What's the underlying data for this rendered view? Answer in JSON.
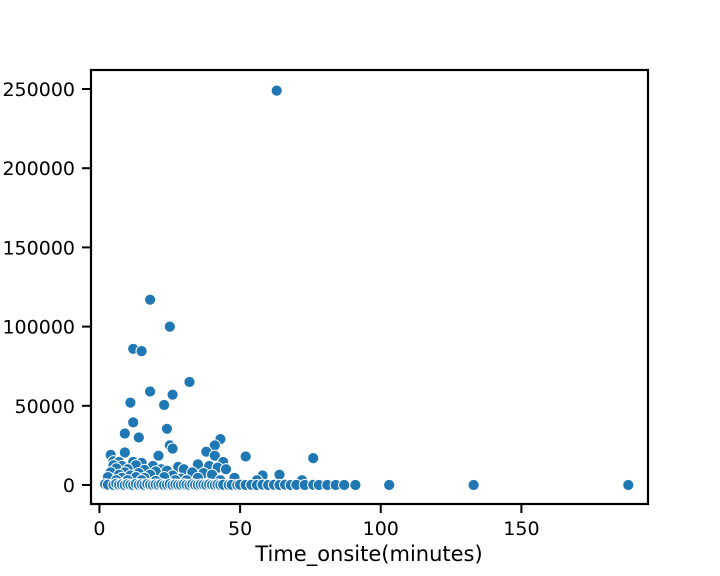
{
  "chart_data": {
    "type": "scatter",
    "title": "",
    "xlabel": "Time_onsite(minutes)",
    "ylabel": "",
    "xlim": [
      -3,
      195
    ],
    "ylim": [
      -12000,
      262000
    ],
    "xticks": [
      0,
      50,
      100,
      150
    ],
    "xtick_labels": [
      "0",
      "50",
      "100",
      "150"
    ],
    "yticks": [
      0,
      50000,
      100000,
      150000,
      200000,
      250000
    ],
    "ytick_labels": [
      "0",
      "50000",
      "100000",
      "150000",
      "200000",
      "250000"
    ],
    "grid": false,
    "legend": "none",
    "marker_color": "#1f77b4",
    "marker_edge_color": "#ffffff",
    "series": [
      {
        "points": [
          [
            63,
            249000
          ],
          [
            18,
            117000
          ],
          [
            25,
            100000
          ],
          [
            12,
            86000
          ],
          [
            15,
            84500
          ],
          [
            32,
            65000
          ],
          [
            18,
            59000
          ],
          [
            26,
            57000
          ],
          [
            11,
            52000
          ],
          [
            23,
            50500
          ],
          [
            12,
            39500
          ],
          [
            24,
            35500
          ],
          [
            9,
            32500
          ],
          [
            14,
            30000
          ],
          [
            43,
            29000
          ],
          [
            41,
            25000
          ],
          [
            25,
            25000
          ],
          [
            26,
            23000
          ],
          [
            38,
            21000
          ],
          [
            9,
            20500
          ],
          [
            4,
            19000
          ],
          [
            21,
            18500
          ],
          [
            41,
            18500
          ],
          [
            52,
            18000
          ],
          [
            76,
            17000
          ],
          [
            5,
            15000
          ],
          [
            7,
            14500
          ],
          [
            12,
            14500
          ],
          [
            15,
            14000
          ],
          [
            44,
            14500
          ],
          [
            35,
            13000
          ],
          [
            5,
            12500
          ],
          [
            8,
            12000
          ],
          [
            13,
            12500
          ],
          [
            19,
            12000
          ],
          [
            28,
            11500
          ],
          [
            39,
            12000
          ],
          [
            42,
            11000
          ],
          [
            6,
            10500
          ],
          [
            10,
            10000
          ],
          [
            16,
            9500
          ],
          [
            22,
            10000
          ],
          [
            24,
            9000
          ],
          [
            30,
            10000
          ],
          [
            45,
            10000
          ],
          [
            4,
            8000
          ],
          [
            9,
            8000
          ],
          [
            14,
            7500
          ],
          [
            20,
            8500
          ],
          [
            33,
            8000
          ],
          [
            37,
            7500
          ],
          [
            7,
            6500
          ],
          [
            11,
            6000
          ],
          [
            18,
            6500
          ],
          [
            26,
            6000
          ],
          [
            40,
            6500
          ],
          [
            58,
            6000
          ],
          [
            64,
            6500
          ],
          [
            3,
            5000
          ],
          [
            8,
            4500
          ],
          [
            13,
            5000
          ],
          [
            16,
            4500
          ],
          [
            23,
            5000
          ],
          [
            29,
            4000
          ],
          [
            35,
            4500
          ],
          [
            48,
            4500
          ],
          [
            6,
            3000
          ],
          [
            10,
            3000
          ],
          [
            15,
            3000
          ],
          [
            20,
            2500
          ],
          [
            27,
            3000
          ],
          [
            31,
            3000
          ],
          [
            43,
            3000
          ],
          [
            56,
            3000
          ],
          [
            72,
            3000
          ],
          [
            2,
            500
          ],
          [
            3,
            200
          ],
          [
            5,
            0
          ],
          [
            6,
            800
          ],
          [
            7,
            100
          ],
          [
            8,
            300
          ],
          [
            9,
            0
          ],
          [
            10,
            500
          ],
          [
            11,
            200
          ],
          [
            12,
            0
          ],
          [
            13,
            700
          ],
          [
            14,
            100
          ],
          [
            15,
            400
          ],
          [
            16,
            0
          ],
          [
            17,
            600
          ],
          [
            18,
            200
          ],
          [
            19,
            0
          ],
          [
            20,
            300
          ],
          [
            21,
            100
          ],
          [
            22,
            500
          ],
          [
            23,
            0
          ],
          [
            24,
            200
          ],
          [
            25,
            600
          ],
          [
            26,
            0
          ],
          [
            27,
            300
          ],
          [
            28,
            100
          ],
          [
            29,
            0
          ],
          [
            30,
            400
          ],
          [
            31,
            200
          ],
          [
            32,
            0
          ],
          [
            33,
            500
          ],
          [
            34,
            100
          ],
          [
            35,
            0
          ],
          [
            36,
            300
          ],
          [
            37,
            200
          ],
          [
            38,
            0
          ],
          [
            39,
            400
          ],
          [
            40,
            100
          ],
          [
            41,
            0
          ],
          [
            42,
            300
          ],
          [
            43,
            0
          ],
          [
            44,
            200
          ],
          [
            46,
            0
          ],
          [
            47,
            100
          ],
          [
            49,
            0
          ],
          [
            50,
            200
          ],
          [
            52,
            0
          ],
          [
            54,
            100
          ],
          [
            56,
            0
          ],
          [
            58,
            200
          ],
          [
            60,
            0
          ],
          [
            62,
            100
          ],
          [
            64,
            0
          ],
          [
            66,
            200
          ],
          [
            68,
            0
          ],
          [
            70,
            100
          ],
          [
            73,
            0
          ],
          [
            76,
            100
          ],
          [
            78,
            0
          ],
          [
            81,
            0
          ],
          [
            84,
            0
          ],
          [
            87,
            0
          ],
          [
            91,
            0
          ],
          [
            103,
            0
          ],
          [
            133,
            0
          ],
          [
            188,
            0
          ]
        ]
      }
    ]
  }
}
